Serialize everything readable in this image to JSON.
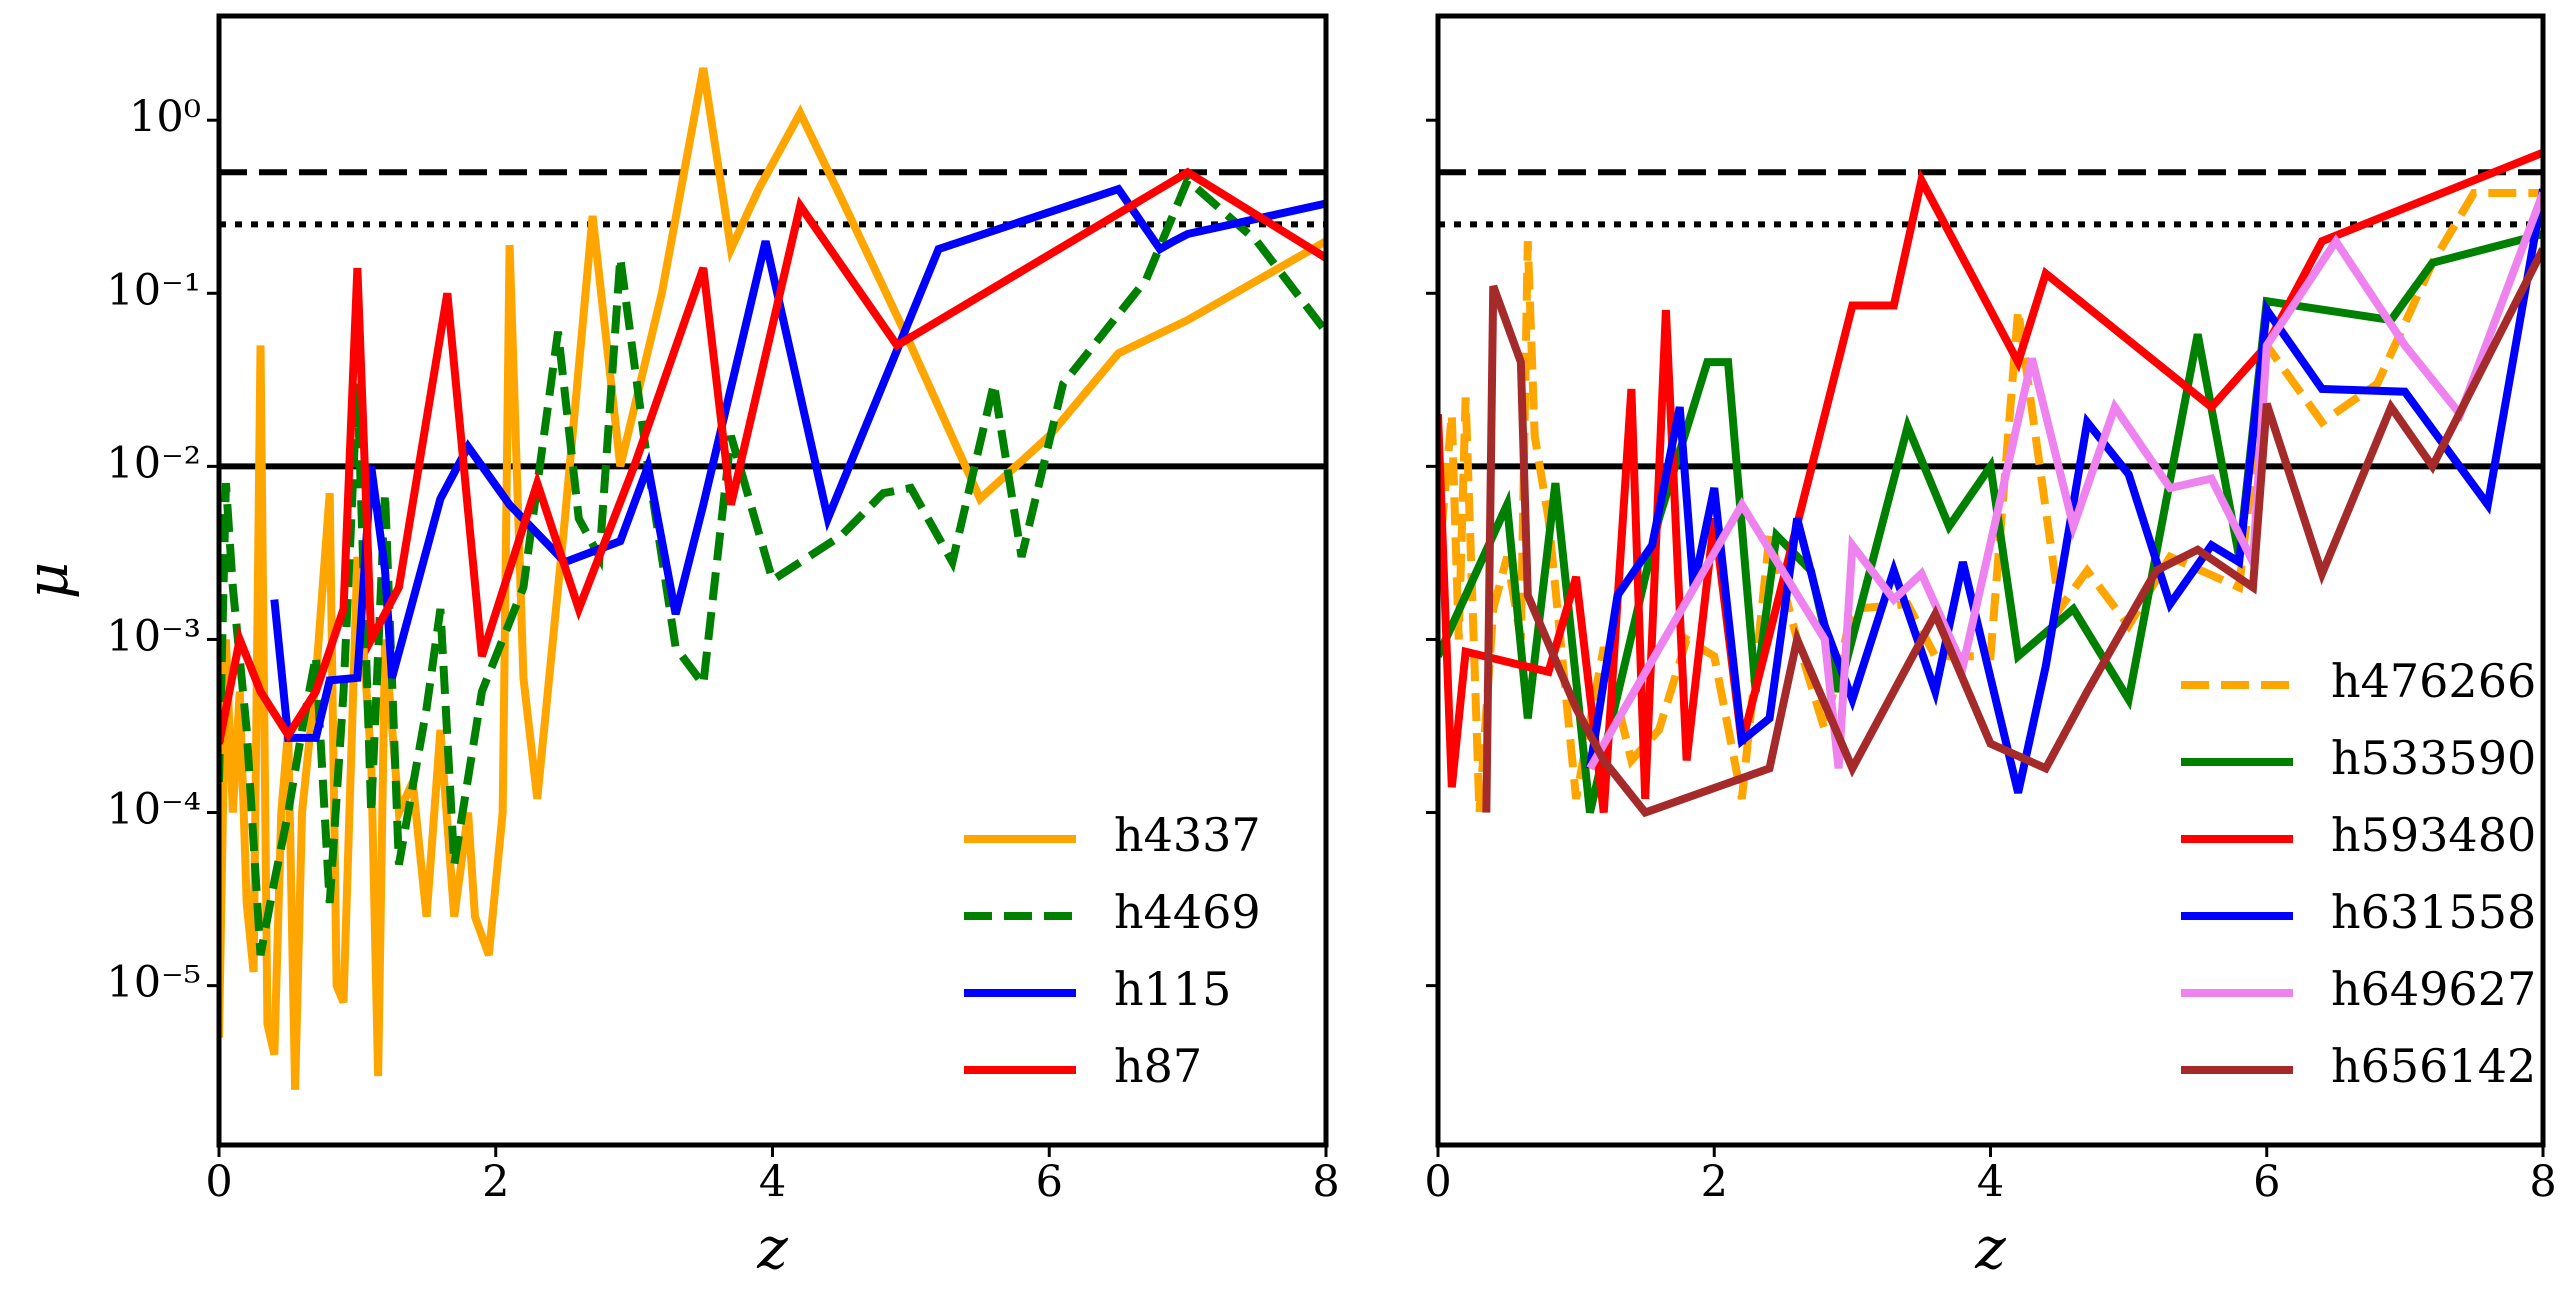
{
  "chart_data": [
    {
      "type": "line",
      "xlabel": "z",
      "ylabel": "μ",
      "log_y": true,
      "xlim": [
        0,
        8
      ],
      "xticks": [
        0,
        2,
        4,
        6,
        8
      ],
      "ylim": [
        1.2e-06,
        4
      ],
      "yticks": [
        {
          "value": 1,
          "label": "10⁰"
        },
        {
          "value": 0.1,
          "label": "10⁻¹"
        },
        {
          "value": 0.01,
          "label": "10⁻²"
        },
        {
          "value": 0.001,
          "label": "10⁻³"
        },
        {
          "value": 0.0001,
          "label": "10⁻⁴"
        },
        {
          "value": 1e-05,
          "label": "10⁻⁵"
        }
      ],
      "reference_lines": [
        {
          "value": 0.5,
          "style": "dashed"
        },
        {
          "value": 0.25,
          "style": "dotted"
        },
        {
          "value": 0.01,
          "style": "solid"
        }
      ],
      "legend": "lower right",
      "series": [
        {
          "name": "h4337",
          "color": "#ffa500",
          "style": "solid",
          "x": [
            0.0,
            0.05,
            0.1,
            0.15,
            0.2,
            0.25,
            0.3,
            0.35,
            0.4,
            0.45,
            0.5,
            0.55,
            0.6,
            0.7,
            0.8,
            0.85,
            0.9,
            1.0,
            1.1,
            1.15,
            1.2,
            1.3,
            1.4,
            1.5,
            1.6,
            1.7,
            1.8,
            1.85,
            1.95,
            2.05,
            2.1,
            2.2,
            2.3,
            2.5,
            2.7,
            2.9,
            3.2,
            3.5,
            3.7,
            3.9,
            4.2,
            4.5,
            5.0,
            5.5,
            6.0,
            6.5,
            7.0,
            8.0
          ],
          "values": [
            5e-06,
            0.001,
            0.0001,
            0.0005,
            3e-05,
            1.2e-05,
            0.05,
            6e-06,
            4e-06,
            0.0001,
            0.0003,
            2.5e-06,
            0.0001,
            0.0006,
            0.007,
            1e-05,
            8e-06,
            0.003,
            0.0002,
            3e-06,
            0.001,
            0.0001,
            0.00015,
            2.5e-05,
            0.0003,
            2.5e-05,
            0.0001,
            2.5e-05,
            1.5e-05,
            0.0001,
            0.19,
            0.0006,
            0.00012,
            0.005,
            0.28,
            0.01,
            0.1,
            2.0,
            0.18,
            0.4,
            1.1,
            0.35,
            0.05,
            0.0065,
            0.015,
            0.045,
            0.07,
            0.2
          ]
        },
        {
          "name": "h4469",
          "color": "#008000",
          "style": "dashed",
          "x": [
            0.0,
            0.05,
            0.1,
            0.2,
            0.3,
            0.4,
            0.5,
            0.6,
            0.7,
            0.8,
            0.9,
            1.0,
            1.1,
            1.2,
            1.3,
            1.5,
            1.6,
            1.7,
            1.9,
            2.2,
            2.45,
            2.6,
            2.75,
            2.9,
            3.1,
            3.3,
            3.5,
            3.7,
            4.0,
            4.5,
            4.8,
            5.0,
            5.3,
            5.6,
            5.8,
            6.1,
            6.7,
            7.0,
            7.5,
            8.0
          ],
          "values": [
            0.00015,
            0.008,
            0.002,
            0.0003,
            1.5e-05,
            4e-05,
            0.0001,
            0.0003,
            0.0008,
            3e-05,
            0.0005,
            0.03,
            0.0001,
            0.007,
            5e-05,
            0.0004,
            0.0015,
            5e-05,
            0.0005,
            0.002,
            0.06,
            0.005,
            0.003,
            0.16,
            0.01,
            0.0009,
            0.00055,
            0.015,
            0.0022,
            0.004,
            0.007,
            0.0075,
            0.0028,
            0.03,
            0.003,
            0.03,
            0.12,
            0.45,
            0.2,
            0.06
          ]
        },
        {
          "name": "h115",
          "color": "#0000ff",
          "style": "solid",
          "x": [
            0.4,
            0.5,
            0.7,
            0.8,
            1.0,
            1.1,
            1.2,
            1.25,
            1.6,
            1.8,
            2.1,
            2.5,
            2.9,
            3.1,
            3.3,
            3.5,
            3.95,
            4.4,
            5.2,
            6.5,
            6.8,
            6.9,
            7.0,
            8.0
          ],
          "values": [
            0.0017,
            0.00027,
            0.00027,
            0.00058,
            0.0006,
            0.01,
            0.0025,
            0.0006,
            0.0065,
            0.013,
            0.006,
            0.0028,
            0.0037,
            0.01,
            0.0014,
            0.006,
            0.2,
            0.005,
            0.18,
            0.4,
            0.18,
            0.2,
            0.22,
            0.33
          ]
        },
        {
          "name": "h87",
          "color": "#ff0000",
          "style": "solid",
          "x": [
            0.0,
            0.15,
            0.3,
            0.5,
            0.7,
            0.9,
            1.0,
            1.1,
            1.3,
            1.65,
            1.9,
            2.3,
            2.6,
            3.0,
            3.5,
            3.7,
            4.2,
            4.9,
            7.0,
            8.0
          ],
          "values": [
            0.00025,
            0.001,
            0.0005,
            0.00028,
            0.0005,
            0.0015,
            0.14,
            0.001,
            0.002,
            0.1,
            0.0008,
            0.008,
            0.0015,
            0.01,
            0.14,
            0.006,
            0.32,
            0.05,
            0.5,
            0.16
          ]
        }
      ]
    },
    {
      "type": "line",
      "xlabel": "z",
      "log_y": true,
      "xlim": [
        0,
        8
      ],
      "xticks": [
        0,
        2,
        4,
        6,
        8
      ],
      "ylim": [
        1.2e-06,
        4
      ],
      "yticks": [
        1,
        0.1,
        0.01,
        0.001,
        0.0001,
        1e-05
      ],
      "reference_lines": [
        {
          "value": 0.5,
          "style": "dashed"
        },
        {
          "value": 0.25,
          "style": "dotted"
        },
        {
          "value": 0.01,
          "style": "solid"
        }
      ],
      "legend": "lower right",
      "series": [
        {
          "name": "h476266",
          "color": "#ffa500",
          "style": "dashed",
          "x": [
            0.0,
            0.1,
            0.15,
            0.2,
            0.3,
            0.4,
            0.5,
            0.6,
            0.65,
            0.7,
            0.8,
            1.0,
            1.2,
            1.4,
            1.6,
            1.8,
            2.0,
            2.2,
            2.4,
            2.6,
            2.8,
            3.0,
            3.4,
            3.6,
            4.0,
            4.2,
            4.5,
            4.7,
            5.0,
            5.3,
            5.8,
            6.0,
            6.4,
            6.8,
            7.2,
            7.5,
            8.0
          ],
          "values": [
            0.0025,
            0.02,
            0.001,
            0.025,
            0.0001,
            0.0015,
            0.003,
            0.001,
            0.2,
            0.015,
            0.005,
            0.00012,
            0.0009,
            0.0002,
            0.0003,
            0.001,
            0.0008,
            0.00012,
            0.004,
            0.001,
            0.0003,
            0.0015,
            0.0016,
            0.0008,
            0.0008,
            0.08,
            0.0015,
            0.0025,
            0.0012,
            0.003,
            0.002,
            0.05,
            0.018,
            0.03,
            0.15,
            0.38,
            0.38
          ]
        },
        {
          "name": "h533590",
          "color": "#008000",
          "style": "solid",
          "x": [
            0.0,
            0.5,
            0.65,
            0.85,
            1.1,
            1.6,
            1.95,
            2.1,
            2.3,
            2.45,
            2.7,
            2.9,
            3.4,
            3.7,
            4.0,
            4.2,
            4.6,
            5.0,
            5.5,
            5.8,
            6.0,
            6.9,
            7.2,
            8.0
          ],
          "values": [
            0.0008,
            0.006,
            0.00035,
            0.008,
            0.0001,
            0.005,
            0.04,
            0.04,
            0.0005,
            0.004,
            0.0025,
            0.0005,
            0.017,
            0.0045,
            0.01,
            0.0008,
            0.0015,
            0.00045,
            0.058,
            0.003,
            0.09,
            0.07,
            0.15,
            0.22
          ]
        },
        {
          "name": "h593480",
          "color": "#ff0000",
          "style": "solid",
          "x": [
            0.0,
            0.1,
            0.2,
            0.8,
            1.0,
            1.2,
            1.4,
            1.5,
            1.65,
            1.8,
            2.0,
            2.2,
            3.0,
            3.3,
            3.5,
            4.2,
            4.4,
            5.6,
            6.0,
            6.4,
            8.0
          ],
          "values": [
            0.02,
            0.00014,
            0.00085,
            0.00065,
            0.0023,
            0.0001,
            0.028,
            0.00012,
            0.08,
            0.0002,
            0.005,
            0.00025,
            0.085,
            0.085,
            0.45,
            0.04,
            0.13,
            0.022,
            0.05,
            0.2,
            0.65
          ]
        },
        {
          "name": "h631558",
          "color": "#0000ff",
          "style": "solid",
          "x": [
            1.1,
            1.3,
            1.55,
            1.75,
            1.85,
            2.0,
            2.2,
            2.4,
            2.6,
            2.8,
            3.0,
            3.3,
            3.6,
            3.8,
            4.0,
            4.2,
            4.4,
            4.7,
            5.0,
            5.3,
            5.6,
            5.8,
            6.0,
            6.4,
            7.0,
            7.6,
            8.0
          ],
          "values": [
            0.00018,
            0.0018,
            0.0035,
            0.022,
            0.002,
            0.0075,
            0.00026,
            0.00035,
            0.005,
            0.0012,
            0.00045,
            0.0025,
            0.0005,
            0.0028,
            0.0006,
            0.00013,
            0.0007,
            0.018,
            0.009,
            0.0016,
            0.0035,
            0.0028,
            0.08,
            0.028,
            0.027,
            0.006,
            0.4
          ]
        },
        {
          "name": "h649627",
          "color": "#ee82ee",
          "style": "solid",
          "x": [
            1.1,
            2.2,
            2.8,
            2.9,
            3.0,
            3.3,
            3.5,
            3.8,
            4.3,
            4.6,
            4.9,
            5.3,
            5.6,
            5.9,
            6.0,
            6.5,
            7.0,
            7.4,
            8.0
          ],
          "values": [
            0.00018,
            0.006,
            0.001,
            0.00018,
            0.0035,
            0.0017,
            0.0024,
            0.0007,
            0.042,
            0.0045,
            0.022,
            0.0075,
            0.0085,
            0.0028,
            0.05,
            0.2,
            0.05,
            0.02,
            0.38
          ]
        },
        {
          "name": "h656142",
          "color": "#a52a2a",
          "style": "solid",
          "x": [
            0.35,
            0.4,
            0.6,
            0.65,
            1.0,
            1.2,
            1.5,
            2.4,
            2.6,
            3.0,
            3.6,
            4.0,
            4.4,
            4.7,
            5.2,
            5.5,
            5.9,
            6.0,
            6.4,
            6.9,
            7.2,
            8.0
          ],
          "values": [
            0.0001,
            0.11,
            0.04,
            0.0018,
            0.0004,
            0.0002,
            0.0001,
            0.00018,
            0.001,
            0.00018,
            0.0014,
            0.00025,
            0.00018,
            0.0005,
            0.0025,
            0.0033,
            0.002,
            0.023,
            0.0024,
            0.022,
            0.01,
            0.18
          ]
        }
      ]
    }
  ]
}
